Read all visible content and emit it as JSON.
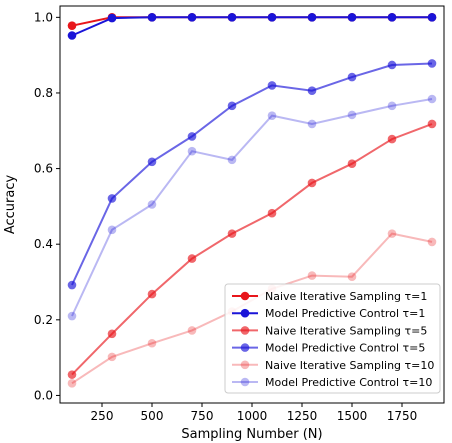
{
  "chart_data": {
    "type": "line",
    "title": "",
    "xlabel": "Sampling Number (N)",
    "ylabel": "Accuracy",
    "xlim": [
      40,
      1960
    ],
    "ylim": [
      -0.02,
      1.03
    ],
    "xticks": [
      250,
      500,
      750,
      1000,
      1250,
      1500,
      1750
    ],
    "yticks": [
      0.0,
      0.2,
      0.4,
      0.6,
      0.8,
      1.0
    ],
    "xtick_labels": [
      "250",
      "500",
      "750",
      "1000",
      "1250",
      "1500",
      "1750"
    ],
    "ytick_labels": [
      "0.0",
      "0.2",
      "0.4",
      "0.6",
      "0.8",
      "1.0"
    ],
    "grid": false,
    "legend_position": "lower-right",
    "x": [
      100,
      300,
      500,
      700,
      900,
      1100,
      1300,
      1500,
      1700,
      1900
    ],
    "series": [
      {
        "name": "Naive Iterative Sampling τ=1",
        "color": "#e8161b",
        "opacity": 1.0,
        "values": [
          0.978,
          1.0,
          1.0,
          1.0,
          1.0,
          1.0,
          1.0,
          1.0,
          1.0,
          1.0
        ]
      },
      {
        "name": "Model Predictive Control τ=1",
        "color": "#1a14d8",
        "opacity": 1.0,
        "values": [
          0.952,
          0.998,
          1.0,
          1.0,
          1.0,
          1.0,
          1.0,
          1.0,
          1.0,
          1.0
        ]
      },
      {
        "name": "Naive Iterative Sampling τ=5",
        "color": "#e8161b",
        "opacity": 0.65,
        "values": [
          0.055,
          0.163,
          0.268,
          0.362,
          0.428,
          0.482,
          0.562,
          0.613,
          0.678,
          0.718
        ]
      },
      {
        "name": "Model Predictive Control τ=5",
        "color": "#1a14d8",
        "opacity": 0.65,
        "values": [
          0.292,
          0.521,
          0.618,
          0.685,
          0.766,
          0.82,
          0.806,
          0.842,
          0.874,
          0.878
        ]
      },
      {
        "name": "Naive Iterative Sampling τ=10",
        "color": "#e8161b",
        "opacity": 0.3,
        "values": [
          0.032,
          0.102,
          0.138,
          0.172,
          0.222,
          0.282,
          0.317,
          0.314,
          0.428,
          0.406
        ]
      },
      {
        "name": "Model Predictive Control τ=10",
        "color": "#1a14d8",
        "opacity": 0.3,
        "values": [
          0.21,
          0.438,
          0.505,
          0.646,
          0.623,
          0.74,
          0.718,
          0.742,
          0.766,
          0.784
        ]
      }
    ]
  }
}
